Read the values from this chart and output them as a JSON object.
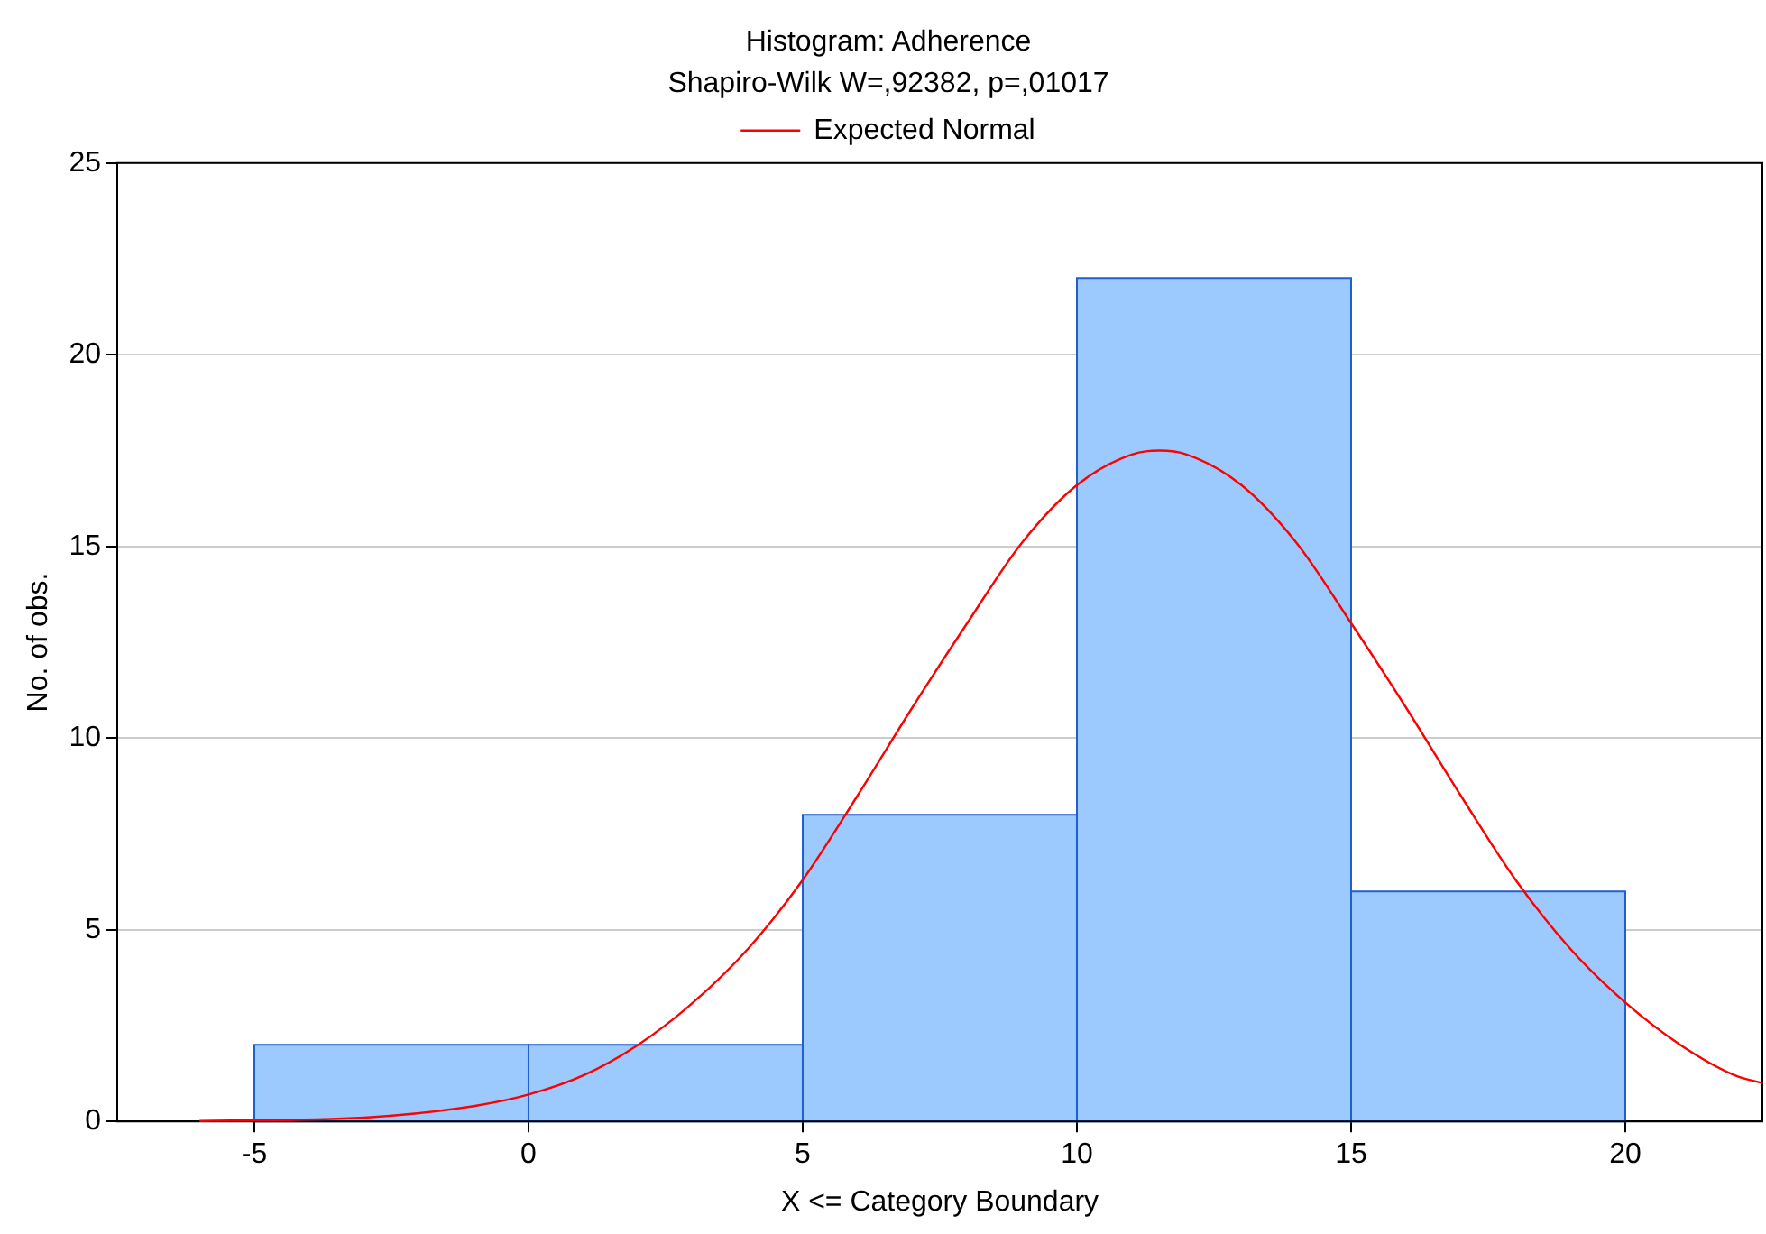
{
  "chart_data": {
    "type": "histogram",
    "title": "Histogram: Adherence",
    "subtitle": "Shapiro-Wilk W=,92382, p=,01017",
    "xlabel": "X <= Category Boundary",
    "ylabel": "No. of obs.",
    "bins": [
      -5,
      0,
      5,
      10,
      15,
      20
    ],
    "values": [
      2,
      2,
      8,
      22,
      6
    ],
    "color": "#9ccaff",
    "series": [
      {
        "name": "Expected Normal",
        "type": "line",
        "color": "#ff0000",
        "x": [
          -6,
          -3,
          -1,
          0,
          1,
          2,
          3,
          4,
          5,
          6,
          7,
          8,
          9,
          10,
          11,
          11.5,
          12,
          13,
          14,
          15,
          16,
          17,
          18,
          19,
          20,
          21,
          22,
          22.5
        ],
        "values": [
          0.01,
          0.1,
          0.4,
          0.7,
          1.2,
          2.0,
          3.1,
          4.5,
          6.3,
          8.5,
          10.8,
          13.0,
          15.1,
          16.6,
          17.4,
          17.5,
          17.4,
          16.6,
          15.1,
          13.0,
          10.8,
          8.5,
          6.3,
          4.5,
          3.1,
          2.0,
          1.2,
          1.0
        ]
      }
    ],
    "xlim": [
      -7.5,
      22.5
    ],
    "xticks": [
      -5,
      0,
      5,
      10,
      15,
      20
    ],
    "ylim": [
      0,
      25
    ],
    "yticks": [
      0,
      5,
      10,
      15,
      20,
      25
    ],
    "grid": "y",
    "legend": "top",
    "marker": "none",
    "line_style": "solid"
  }
}
